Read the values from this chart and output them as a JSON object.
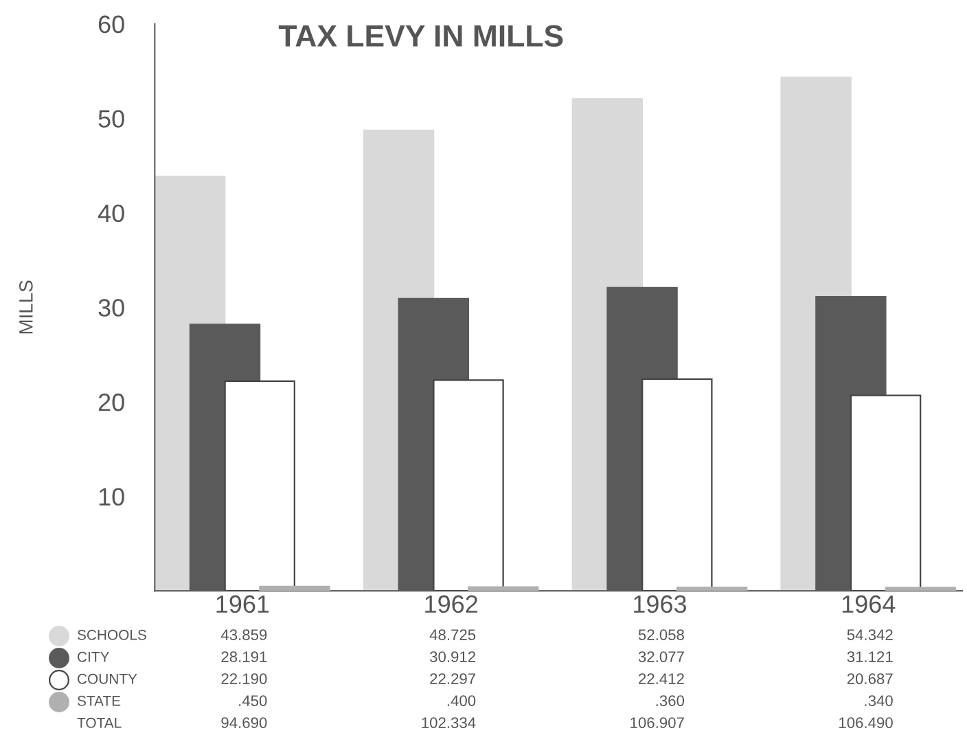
{
  "chart_data": {
    "type": "bar",
    "title": "TAX LEVY IN MILLS",
    "ylabel": "MILLS",
    "categories": [
      "1961",
      "1962",
      "1963",
      "1964"
    ],
    "series": [
      {
        "name": "SCHOOLS",
        "color": "#d9d9d9",
        "values": [
          43.859,
          48.725,
          52.058,
          54.342
        ],
        "value_labels": [
          "43.859",
          "48.725",
          "52.058",
          "54.342"
        ]
      },
      {
        "name": "CITY",
        "color": "#5a5a5a",
        "values": [
          28.191,
          30.912,
          32.077,
          31.121
        ],
        "value_labels": [
          "28.191",
          "30.912",
          "32.077",
          "31.121"
        ]
      },
      {
        "name": "COUNTY",
        "color": "#ffffff",
        "values": [
          22.19,
          22.297,
          22.412,
          20.687
        ],
        "value_labels": [
          "22.190",
          "22.297",
          "22.412",
          "20.687"
        ]
      },
      {
        "name": "STATE",
        "color": "#b0b0b0",
        "values": [
          0.45,
          0.4,
          0.36,
          0.34
        ],
        "value_labels": [
          ".450",
          ".400",
          ".360",
          ".340"
        ]
      }
    ],
    "annotations": [
      "TOTAL",
      "94.690",
      "102.334",
      "106.907",
      "106.490"
    ],
    "ylim": [
      0,
      60
    ],
    "yticks": [
      10,
      20,
      30,
      40,
      50,
      60
    ],
    "grid": false,
    "legend": "bottom"
  }
}
